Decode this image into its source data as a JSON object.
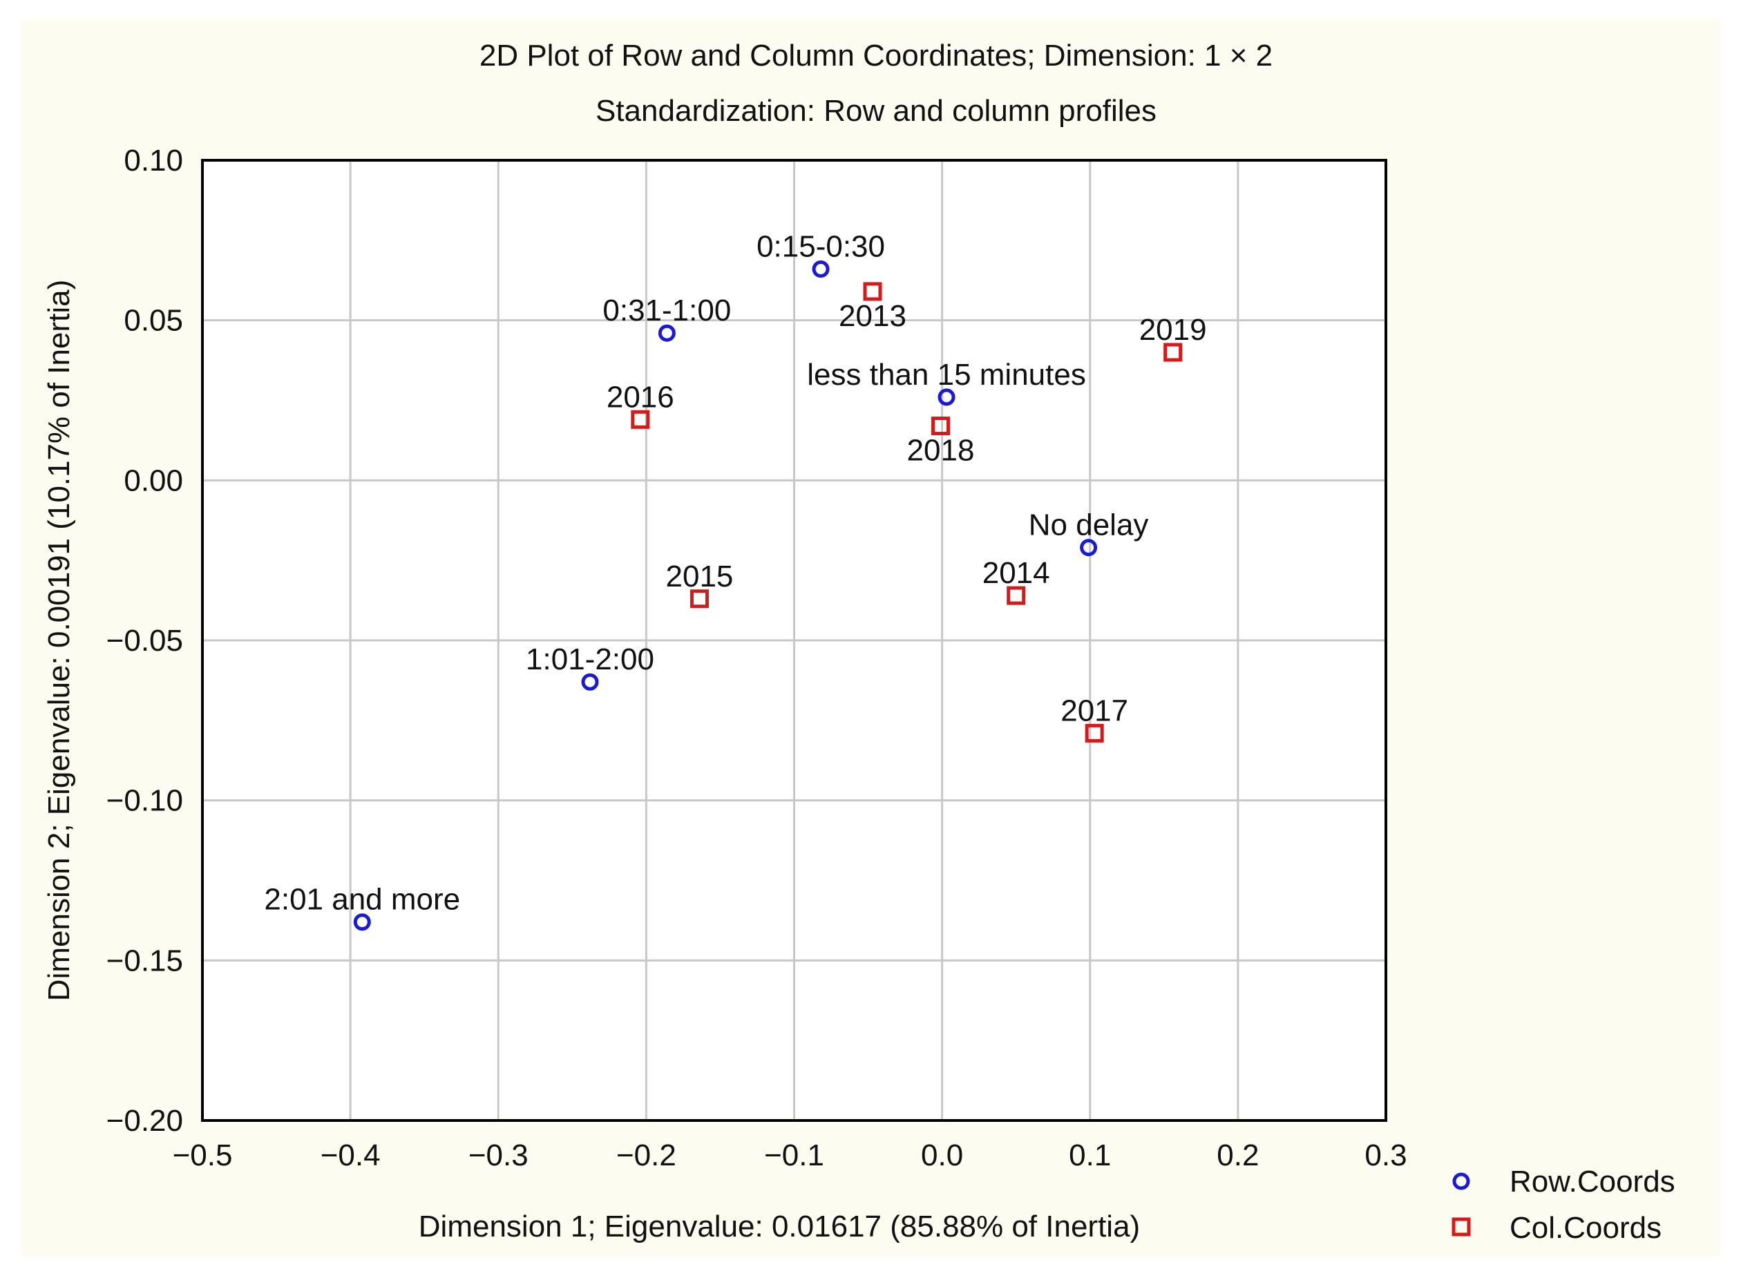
{
  "chart_data": {
    "type": "scatter",
    "title": "2D Plot of Row and Column Coordinates; Dimension:  1 × 2",
    "subtitle": "Standardization: Row and column profiles",
    "xlabel": "Dimension 1; Eigenvalue: 0.01617 (85.88% of Inertia)",
    "ylabel": "Dimension 2; Eigenvalue: 0.00191 (10.17% of Inertia)",
    "xlim": [
      -0.5,
      0.3
    ],
    "ylim": [
      -0.2,
      0.1
    ],
    "x_ticks": [
      -0.5,
      -0.4,
      -0.3,
      -0.2,
      -0.1,
      0.0,
      0.1,
      0.2,
      0.3
    ],
    "x_tick_labels": [
      "−0.5",
      "−0.4",
      "−0.3",
      "−0.2",
      "−0.1",
      "0.0",
      "0.1",
      "0.2",
      "0.3"
    ],
    "y_ticks": [
      0.1,
      0.05,
      0.0,
      -0.05,
      -0.1,
      -0.15,
      -0.2
    ],
    "y_tick_labels": [
      "0.10",
      "0.05",
      "0.00",
      "−0.05",
      "−0.10",
      "−0.15",
      "−0.20"
    ],
    "grid": true,
    "legend_position": "bottom-right",
    "series": [
      {
        "name": "Row.Coords",
        "marker": "circle",
        "color": "#1a1ad6",
        "points": [
          {
            "label": "0:15-0:30",
            "x": -0.082,
            "y": 0.066,
            "label_pos": "above"
          },
          {
            "label": "0:31-1:00",
            "x": -0.186,
            "y": 0.046,
            "label_pos": "above"
          },
          {
            "label": "less than 15 minutes",
            "x": 0.003,
            "y": 0.026,
            "label_pos": "above"
          },
          {
            "label": "No delay",
            "x": 0.099,
            "y": -0.021,
            "label_pos": "above"
          },
          {
            "label": "1:01-2:00",
            "x": -0.238,
            "y": -0.063,
            "label_pos": "above"
          },
          {
            "label": "2:01 and more",
            "x": -0.392,
            "y": -0.138,
            "label_pos": "above"
          }
        ]
      },
      {
        "name": "Col.Coords",
        "marker": "square",
        "color": "#d61a1a",
        "points": [
          {
            "label": "2013",
            "x": -0.047,
            "y": 0.059,
            "label_pos": "below"
          },
          {
            "label": "2019",
            "x": 0.156,
            "y": 0.04,
            "label_pos": "above"
          },
          {
            "label": "2016",
            "x": -0.204,
            "y": 0.019,
            "label_pos": "above"
          },
          {
            "label": "2018",
            "x": -0.001,
            "y": 0.017,
            "label_pos": "below"
          },
          {
            "label": "2014",
            "x": 0.05,
            "y": -0.036,
            "label_pos": "above"
          },
          {
            "label": "2015",
            "x": -0.164,
            "y": -0.037,
            "label_pos": "above"
          },
          {
            "label": "2017",
            "x": 0.103,
            "y": -0.079,
            "label_pos": "above"
          }
        ]
      }
    ]
  }
}
